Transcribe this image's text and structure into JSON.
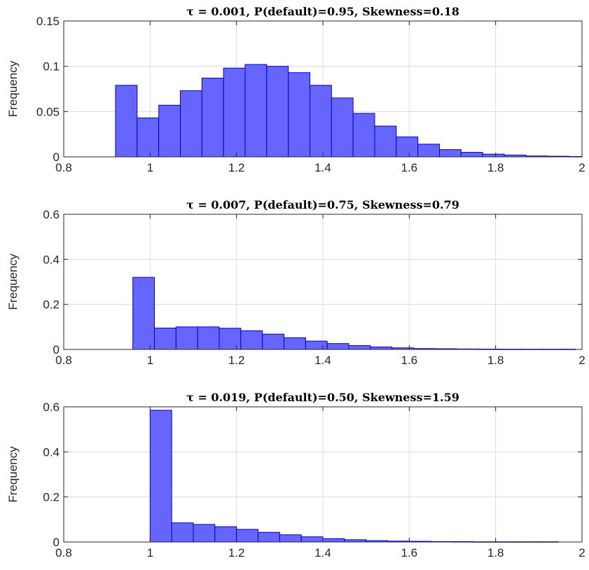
{
  "chart_data": [
    {
      "type": "bar",
      "title": "τ = 0.001, P(default)=0.95, Skewness=0.18",
      "xlabel": "",
      "ylabel": "Frequency",
      "xlim": [
        0.8,
        2
      ],
      "ylim": [
        0,
        0.15
      ],
      "xticks": [
        "0.8",
        "1",
        "1.2",
        "1.4",
        "1.6",
        "1.8",
        "2"
      ],
      "yticks": [
        "0",
        "0.05",
        "0.1",
        "0.15"
      ],
      "grid": true,
      "bins": {
        "edges": [
          0.92,
          0.97,
          1.02,
          1.07,
          1.12,
          1.17,
          1.22,
          1.27,
          1.32,
          1.37,
          1.42,
          1.47,
          1.52,
          1.57,
          1.62,
          1.67,
          1.72,
          1.77,
          1.82,
          1.87,
          1.92,
          1.97,
          2.02
        ],
        "values": [
          0.079,
          0.043,
          0.057,
          0.073,
          0.087,
          0.098,
          0.102,
          0.1,
          0.093,
          0.079,
          0.065,
          0.048,
          0.034,
          0.022,
          0.014,
          0.008,
          0.005,
          0.003,
          0.002,
          0.001,
          0.0007,
          0.0004
        ]
      }
    },
    {
      "type": "bar",
      "title": "τ = 0.007, P(default)=0.75, Skewness=0.79",
      "xlabel": "",
      "ylabel": "Frequency",
      "xlim": [
        0.8,
        2
      ],
      "ylim": [
        0,
        0.6
      ],
      "xticks": [
        "0.8",
        "1",
        "1.2",
        "1.4",
        "1.6",
        "1.8",
        "2"
      ],
      "yticks": [
        "0",
        "0.2",
        "0.4",
        "0.6"
      ],
      "grid": true,
      "bins": {
        "edges": [
          0.96,
          1.01,
          1.06,
          1.11,
          1.16,
          1.21,
          1.26,
          1.31,
          1.36,
          1.41,
          1.46,
          1.51,
          1.56,
          1.61,
          1.66,
          1.71,
          1.76,
          1.81,
          1.86,
          1.91,
          1.96,
          1.985
        ],
        "values": [
          0.32,
          0.095,
          0.1,
          0.1,
          0.094,
          0.083,
          0.068,
          0.052,
          0.037,
          0.026,
          0.017,
          0.011,
          0.007,
          0.004,
          0.003,
          0.002,
          0.0015,
          0.001,
          0.001,
          0.001,
          0.001
        ]
      }
    },
    {
      "type": "bar",
      "title": "τ = 0.019, P(default)=0.50, Skewness=1.59",
      "xlabel": "",
      "ylabel": "Frequency",
      "xlim": [
        0.8,
        2
      ],
      "ylim": [
        0,
        0.6
      ],
      "xticks": [
        "0.8",
        "1",
        "1.2",
        "1.4",
        "1.6",
        "1.8",
        "2"
      ],
      "yticks": [
        "0",
        "0.2",
        "0.4",
        "0.6"
      ],
      "grid": true,
      "bins": {
        "edges": [
          1.0,
          1.05,
          1.1,
          1.15,
          1.2,
          1.25,
          1.3,
          1.35,
          1.4,
          1.45,
          1.5,
          1.55,
          1.6,
          1.65,
          1.7,
          1.75,
          1.8,
          1.85,
          1.9,
          1.945
        ],
        "values": [
          0.585,
          0.085,
          0.078,
          0.068,
          0.056,
          0.043,
          0.032,
          0.023,
          0.015,
          0.01,
          0.006,
          0.004,
          0.003,
          0.002,
          0.0015,
          0.001,
          0.001,
          0.001,
          0.001
        ]
      }
    }
  ]
}
